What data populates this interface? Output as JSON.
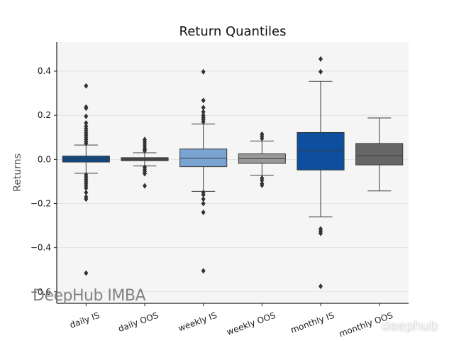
{
  "chart_data": {
    "type": "box",
    "title": "Return Quantiles",
    "xlabel": "",
    "ylabel": "Returns",
    "ylim": [
      -0.62,
      0.5
    ],
    "yticks": [
      0.4,
      0.2,
      0.0,
      -0.2,
      -0.4,
      -0.6
    ],
    "ytick_labels": [
      "0.4",
      "0.2",
      "0.0",
      "−0.2",
      "−0.4",
      "−0.6"
    ],
    "grid": true,
    "categories": [
      "daily IS",
      "daily OOS",
      "weekly IS",
      "weekly OOS",
      "monthly IS",
      "monthly OOS"
    ],
    "boxes": [
      {
        "name": "daily IS",
        "color": "#0d4a8a",
        "q1": -0.012,
        "median": 0.002,
        "q3": 0.015,
        "whisker_low": -0.063,
        "whisker_high": 0.065,
        "outliers": [
          0.333,
          0.237,
          0.232,
          0.195,
          0.165,
          0.15,
          0.14,
          0.13,
          0.12,
          0.11,
          0.1,
          0.09,
          0.08,
          0.072,
          -0.07,
          -0.08,
          -0.09,
          -0.1,
          -0.11,
          -0.12,
          -0.13,
          -0.15,
          -0.17,
          -0.18,
          -0.515
        ]
      },
      {
        "name": "daily OOS",
        "color": "#4c4c4c",
        "q1": -0.006,
        "median": 0.001,
        "q3": 0.008,
        "whisker_low": -0.03,
        "whisker_high": 0.03,
        "outliers": [
          0.09,
          0.08,
          0.07,
          0.06,
          0.05,
          0.045,
          0.038,
          -0.035,
          -0.045,
          -0.055,
          -0.065,
          -0.12
        ]
      },
      {
        "name": "weekly IS",
        "color": "#7aa3d2",
        "q1": -0.033,
        "median": 0.005,
        "q3": 0.047,
        "whisker_low": -0.145,
        "whisker_high": 0.16,
        "outliers": [
          0.397,
          0.267,
          0.235,
          0.215,
          0.2,
          0.19,
          0.18,
          0.17,
          -0.15,
          -0.16,
          -0.18,
          -0.2,
          -0.24,
          -0.505
        ]
      },
      {
        "name": "weekly OOS",
        "color": "#999999",
        "q1": -0.018,
        "median": 0.003,
        "q3": 0.025,
        "whisker_low": -0.072,
        "whisker_high": 0.083,
        "outliers": [
          0.114,
          0.105,
          0.095,
          -0.085,
          -0.095,
          -0.11,
          -0.117
        ]
      },
      {
        "name": "monthly IS",
        "color": "#0d4f9e",
        "q1": -0.048,
        "median": 0.04,
        "q3": 0.122,
        "whisker_low": -0.26,
        "whisker_high": 0.354,
        "outliers": [
          0.455,
          0.397,
          -0.315,
          -0.325,
          -0.335,
          -0.575
        ]
      },
      {
        "name": "monthly OOS",
        "color": "#666666",
        "q1": -0.025,
        "median": 0.017,
        "q3": 0.072,
        "whisker_low": -0.143,
        "whisker_high": 0.188,
        "outliers": []
      }
    ]
  },
  "watermarks": {
    "left": "DeepHub IMBA",
    "right": "deephub"
  }
}
